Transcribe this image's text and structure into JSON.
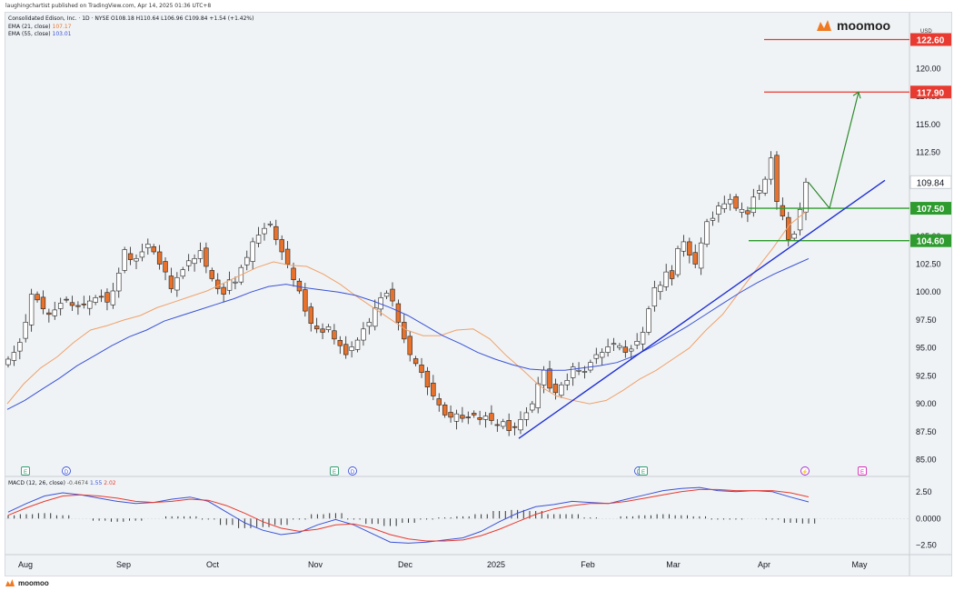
{
  "publisher_line": "laughingchartist published on TradingView.com, Apr 14, 2025 01:36 UTC+8",
  "header": {
    "symbol_line": "Consolidated Edison, Inc. · 1D · NYSE  O108.18  H110.64  L106.96  C109.84  +1.54 (+1.42%)",
    "ema21_label": "EMA (21, close)",
    "ema21_value": "107.17",
    "ema55_label": "EMA (55, close)",
    "ema55_value": "103.01",
    "macd_label": "MACD (12, 26, close)",
    "macd_hist_value": "-0.4674",
    "macd_value": "1.55",
    "signal_value": "2.02"
  },
  "brand": {
    "name": "moomoo"
  },
  "currency": "USD",
  "colors": {
    "up": "#ffffff",
    "down": "#e8722c",
    "wick": "#222222",
    "ema21": "#f0a16b",
    "ema55": "#3a52d8",
    "trendline": "#1f2fd6",
    "target": "#e83a30",
    "support": "#2e9b2e",
    "arrow": "#2e8b2e",
    "macd": "#3a52d8",
    "signal": "#e83a30"
  },
  "chart_data": {
    "type": "candlestick",
    "symbol": "Consolidated Edison, Inc.",
    "interval": "1D",
    "exchange": "NYSE",
    "last": {
      "open": 108.18,
      "high": 110.64,
      "low": 106.96,
      "close": 109.84,
      "change": 1.54,
      "change_pct": 1.42
    },
    "y_range": [
      83.5,
      125.0
    ],
    "y_ticks": [
      "120.00",
      "117.50",
      "115.00",
      "112.50",
      "110.00",
      "107.50",
      "105.00",
      "102.50",
      "100.00",
      "97.50",
      "95.00",
      "92.50",
      "90.00",
      "87.50",
      "85.00"
    ],
    "x_ticks": [
      "Aug",
      "Sep",
      "Oct",
      "Nov",
      "Dec",
      "2025",
      "Feb",
      "Mar",
      "Apr",
      "May"
    ],
    "closes": [
      94.0,
      94.6,
      95.5,
      97.3,
      99.8,
      99.3,
      98.5,
      98.0,
      98.4,
      99.0,
      99.3,
      98.8,
      98.7,
      98.9,
      99.2,
      99.5,
      99.6,
      99.1,
      100.1,
      101.7,
      103.8,
      102.9,
      103.0,
      103.6,
      104.3,
      103.6,
      102.5,
      101.8,
      100.3,
      101.3,
      102.0,
      102.8,
      103.0,
      103.7,
      102.3,
      101.2,
      100.3,
      99.8,
      101.1,
      100.9,
      102.2,
      103.1,
      104.5,
      105.1,
      105.7,
      106.1,
      104.7,
      103.6,
      102.5,
      101.1,
      100.1,
      98.3,
      97.2,
      96.7,
      96.4,
      96.9,
      95.8,
      95.2,
      94.4,
      95.1,
      95.7,
      96.7,
      97.3,
      98.6,
      99.5,
      99.9,
      99.2,
      97.3,
      95.8,
      94.4,
      93.6,
      92.8,
      91.5,
      90.7,
      89.9,
      89.0,
      88.8,
      89.1,
      88.7,
      88.8,
      89.0,
      88.6,
      88.9,
      88.5,
      88.1,
      88.4,
      87.6,
      87.9,
      88.6,
      89.2,
      90.0,
      91.8,
      93.0,
      91.4,
      91.0,
      91.7,
      92.1,
      93.3,
      93.0,
      92.9,
      93.7,
      94.4,
      94.6,
      95.1,
      95.4,
      95.2,
      94.6,
      94.9,
      95.6,
      96.4,
      98.5,
      100.4,
      100.6,
      101.8,
      101.2,
      103.9,
      104.5,
      103.3,
      102.5,
      104.4,
      106.3,
      106.6,
      107.7,
      107.9,
      108.3,
      107.5,
      107.4,
      107.0,
      108.5,
      109.1,
      110.1,
      112.0,
      108.1,
      106.8,
      104.7,
      105.2,
      107.4,
      109.84
    ],
    "ema21": [
      90.0,
      91.8,
      93.2,
      94.2,
      95.5,
      96.6,
      97.0,
      97.5,
      97.9,
      98.6,
      99.1,
      99.6,
      100.1,
      100.8,
      101.5,
      102.2,
      102.7,
      102.4,
      102.3,
      101.6,
      100.7,
      99.6,
      98.6,
      97.6,
      96.6,
      96.1,
      96.1,
      96.6,
      96.7,
      95.8,
      94.3,
      93.0,
      91.6,
      90.7,
      90.3,
      90.0,
      90.3,
      91.2,
      92.2,
      93.0,
      94.0,
      95.0,
      96.6,
      98.0,
      100.0,
      102.0,
      103.9,
      106.0,
      107.2
    ],
    "ema55": [
      89.5,
      90.3,
      91.3,
      92.3,
      93.4,
      94.3,
      95.2,
      96.0,
      96.6,
      97.4,
      97.9,
      98.4,
      98.9,
      99.4,
      100.0,
      100.5,
      100.7,
      100.4,
      100.2,
      100.0,
      99.7,
      99.2,
      98.6,
      97.9,
      97.0,
      96.1,
      95.4,
      94.6,
      94.0,
      93.5,
      93.1,
      93.0,
      93.0,
      93.2,
      93.4,
      93.7,
      94.3,
      95.1,
      96.0,
      96.9,
      97.9,
      98.9,
      99.9,
      100.8,
      101.6,
      102.3,
      103.0
    ],
    "levels": [
      {
        "label": "122.60",
        "value": 122.6,
        "kind": "target"
      },
      {
        "label": "117.90",
        "value": 117.9,
        "kind": "target"
      },
      {
        "label": "107.50",
        "value": 107.5,
        "kind": "support"
      },
      {
        "label": "104.60",
        "value": 104.6,
        "kind": "support"
      }
    ],
    "last_price_label": "109.84",
    "trendline": {
      "from": {
        "date": "2025-01-02",
        "price": 86.9
      },
      "to": {
        "date": "2025-04-20",
        "price": 110.0
      }
    },
    "projection": [
      {
        "date": "2025-04-14",
        "price": 109.8
      },
      {
        "date": "2025-04-18",
        "price": 107.5
      },
      {
        "date": "2025-04-30",
        "price": 117.9
      }
    ],
    "event_markers": [
      {
        "symbol": "E",
        "kind": "earnings"
      },
      {
        "symbol": "D",
        "kind": "dividend"
      },
      {
        "symbol": "E",
        "kind": "earnings"
      },
      {
        "symbol": "D",
        "kind": "dividend"
      },
      {
        "symbol": "D",
        "kind": "dividend"
      },
      {
        "symbol": "E",
        "kind": "earnings"
      },
      {
        "symbol": "⚡",
        "kind": "split"
      },
      {
        "symbol": "E",
        "kind": "earnings-upcoming"
      }
    ],
    "macd": {
      "y_ticks": [
        "2.50",
        "0.0000",
        "−2.50"
      ],
      "y_range": [
        -3.2,
        3.5
      ],
      "macd": [
        0.6,
        1.4,
        2.1,
        2.4,
        2.2,
        1.9,
        1.6,
        1.4,
        1.5,
        1.8,
        2.0,
        1.6,
        0.6,
        -0.4,
        -1.1,
        -1.5,
        -1.3,
        -0.6,
        -0.1,
        -0.6,
        -1.4,
        -2.2,
        -2.3,
        -2.2,
        -2.0,
        -1.8,
        -1.2,
        -0.3,
        0.5,
        1.1,
        1.3,
        1.6,
        1.5,
        1.4,
        1.8,
        2.2,
        2.6,
        2.8,
        2.9,
        2.6,
        2.5,
        2.6,
        2.5,
        2.0,
        1.55
      ],
      "signal": [
        0.3,
        1.0,
        1.6,
        2.1,
        2.2,
        2.1,
        1.9,
        1.6,
        1.5,
        1.6,
        1.8,
        1.7,
        1.2,
        0.5,
        -0.3,
        -0.9,
        -1.2,
        -1.0,
        -0.6,
        -0.5,
        -0.9,
        -1.5,
        -1.9,
        -2.1,
        -2.1,
        -2.0,
        -1.6,
        -1.0,
        -0.3,
        0.4,
        0.9,
        1.2,
        1.4,
        1.4,
        1.6,
        1.9,
        2.2,
        2.5,
        2.7,
        2.7,
        2.6,
        2.6,
        2.6,
        2.4,
        2.02
      ],
      "hist": [
        0.3,
        0.4,
        0.5,
        0.3,
        0.0,
        -0.2,
        -0.3,
        -0.2,
        0.0,
        0.2,
        0.2,
        -0.1,
        -0.6,
        -0.9,
        -0.8,
        -0.6,
        -0.1,
        0.4,
        0.5,
        -0.1,
        -0.5,
        -0.7,
        -0.4,
        -0.1,
        0.1,
        0.2,
        0.4,
        0.7,
        0.8,
        0.7,
        0.4,
        0.4,
        0.1,
        0.0,
        0.2,
        0.3,
        0.4,
        0.3,
        0.2,
        -0.1,
        -0.1,
        0.0,
        -0.1,
        -0.4,
        -0.47
      ]
    }
  }
}
